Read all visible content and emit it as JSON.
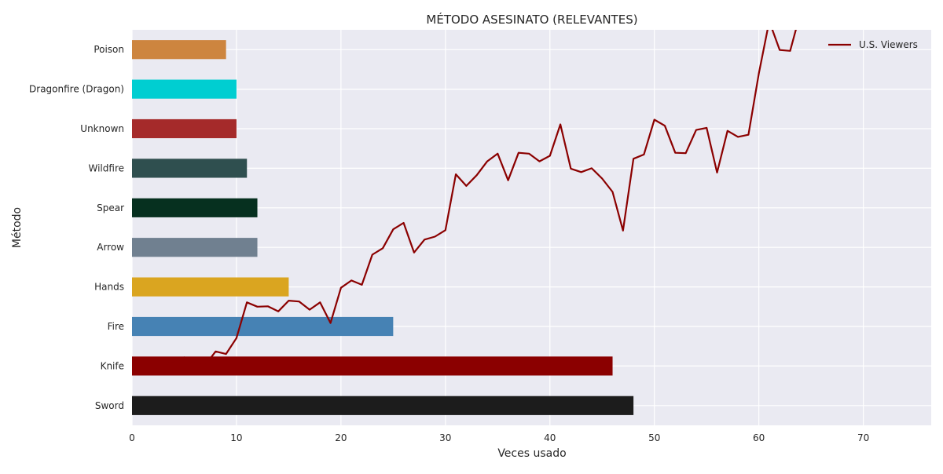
{
  "chart_data": {
    "type": "bar",
    "orientation": "horizontal",
    "title": "MÉTODO ASESINATO (RELEVANTES)",
    "xlabel": "Veces usado",
    "ylabel": "Método",
    "xlim": [
      0,
      76.5
    ],
    "xticks": [
      0,
      10,
      20,
      30,
      40,
      50,
      60,
      70
    ],
    "grid": true,
    "legend_position": "top-right",
    "categories": [
      "Sword",
      "Knife",
      "Fire",
      "Hands",
      "Arrow",
      "Spear",
      "Wildfire",
      "Unknown",
      "Dragonfire (Dragon)",
      "Poison"
    ],
    "values": [
      48,
      46,
      25,
      15,
      12,
      12,
      11,
      10,
      10,
      9
    ],
    "bar_colors": [
      "#1c1c1c",
      "#8b0000",
      "#4682b4",
      "#daa520",
      "#708090",
      "#06301f",
      "#2f4f4f",
      "#a52a2a",
      "#00ced1",
      "#cd853f"
    ],
    "line_series": {
      "name": "U.S. Viewers",
      "color": "#8b0000",
      "x": [
        1,
        2,
        3,
        4,
        5,
        6,
        7,
        8,
        9,
        10,
        11,
        12,
        13,
        14,
        15,
        16,
        17,
        18,
        19,
        20,
        21,
        22,
        23,
        24,
        25,
        26,
        27,
        28,
        29,
        30,
        31,
        32,
        33,
        34,
        35,
        36,
        37,
        38,
        39,
        40,
        41,
        42,
        43,
        44,
        45,
        46,
        47,
        48,
        49,
        50,
        51,
        52,
        53,
        54,
        55,
        56,
        57,
        58,
        59,
        60,
        61,
        62,
        63,
        64
      ],
      "y": [
        2.22,
        2.2,
        2.44,
        2.45,
        2.58,
        2.44,
        2.4,
        2.72,
        2.66,
        3.03,
        3.86,
        3.76,
        3.77,
        3.65,
        3.9,
        3.88,
        3.69,
        3.86,
        3.38,
        4.2,
        4.37,
        4.27,
        4.97,
        5.12,
        5.56,
        5.71,
        5.02,
        5.32,
        5.39,
        5.54,
        6.84,
        6.57,
        6.82,
        7.14,
        7.32,
        6.7,
        7.34,
        7.32,
        7.14,
        7.27,
        8.0,
        6.97,
        6.89,
        6.98,
        6.74,
        6.43,
        5.53,
        7.2,
        7.3,
        8.11,
        7.97,
        7.34,
        7.33,
        7.87,
        7.92,
        6.88,
        7.85,
        7.71,
        7.76,
        9.18,
        10.4,
        9.73,
        9.71,
        10.61
      ]
    }
  }
}
